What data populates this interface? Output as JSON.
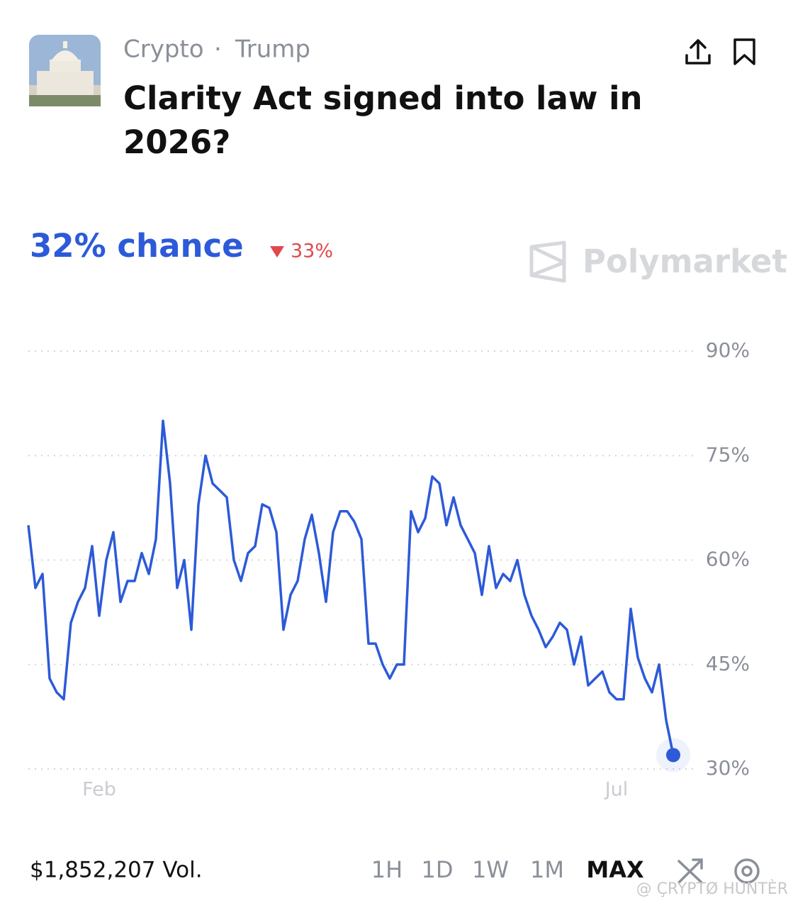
{
  "header": {
    "category": "Crypto",
    "separator": "·",
    "tag": "Trump",
    "title_line1": "Clarity Act signed into law in",
    "title_line2": "2026?"
  },
  "headline": "32% chance",
  "change": "33%",
  "brand": "Polymarket",
  "chart_data": {
    "type": "line",
    "color": "#2c5ad8",
    "categories": [
      null,
      null,
      null,
      null,
      null,
      null,
      null,
      null,
      null,
      null,
      "Feb",
      null,
      null,
      null,
      null,
      null,
      null,
      null,
      null,
      null,
      null,
      null,
      null,
      null,
      null,
      null,
      null,
      null,
      null,
      null,
      null,
      null,
      null,
      null,
      null,
      null,
      null,
      null,
      null,
      null,
      null,
      null,
      null,
      null,
      null,
      null,
      null,
      null,
      null,
      null,
      null,
      null,
      null,
      null,
      null,
      null,
      null,
      null,
      null,
      null,
      null,
      null,
      null,
      null,
      null,
      null,
      null,
      null,
      null,
      null,
      null,
      null,
      null,
      null,
      null,
      null,
      null,
      null,
      null,
      null,
      null,
      null,
      null,
      "Jul",
      null,
      null,
      null,
      null,
      null,
      null,
      null,
      null
    ],
    "values": [
      65,
      56,
      58,
      43,
      41,
      40,
      51,
      54,
      56,
      62,
      52,
      60,
      64,
      54,
      57,
      57,
      61,
      58,
      63,
      80,
      71,
      56,
      60,
      50,
      68,
      75,
      71,
      70,
      69,
      60,
      57,
      61,
      62,
      68,
      67.5,
      64,
      50,
      55,
      57,
      63,
      66.5,
      61,
      54,
      64,
      67,
      67,
      65.5,
      63,
      48,
      48,
      45,
      43,
      45,
      45,
      67,
      64,
      66,
      72,
      71,
      65,
      69,
      65,
      63,
      61,
      55,
      62,
      56,
      58,
      57,
      60,
      55,
      52,
      50,
      47.5,
      49,
      51,
      50,
      45,
      49,
      42,
      43,
      44,
      41,
      40,
      40,
      53,
      46,
      43,
      41,
      45,
      37,
      32
    ],
    "ylim": [
      30,
      90
    ],
    "yticks": [
      {
        "value": 30,
        "label": "30%"
      },
      {
        "value": 45,
        "label": "45%"
      },
      {
        "value": 60,
        "label": "60%"
      },
      {
        "value": 75,
        "label": "75%"
      },
      {
        "value": 90,
        "label": "90%"
      }
    ],
    "grid": true
  },
  "footer": {
    "volume": "$1,852,207 Vol.",
    "ranges": [
      "1H",
      "1D",
      "1W",
      "1M",
      "MAX"
    ],
    "watermark": "@ ÇRYPTØ HUNTÈR"
  }
}
